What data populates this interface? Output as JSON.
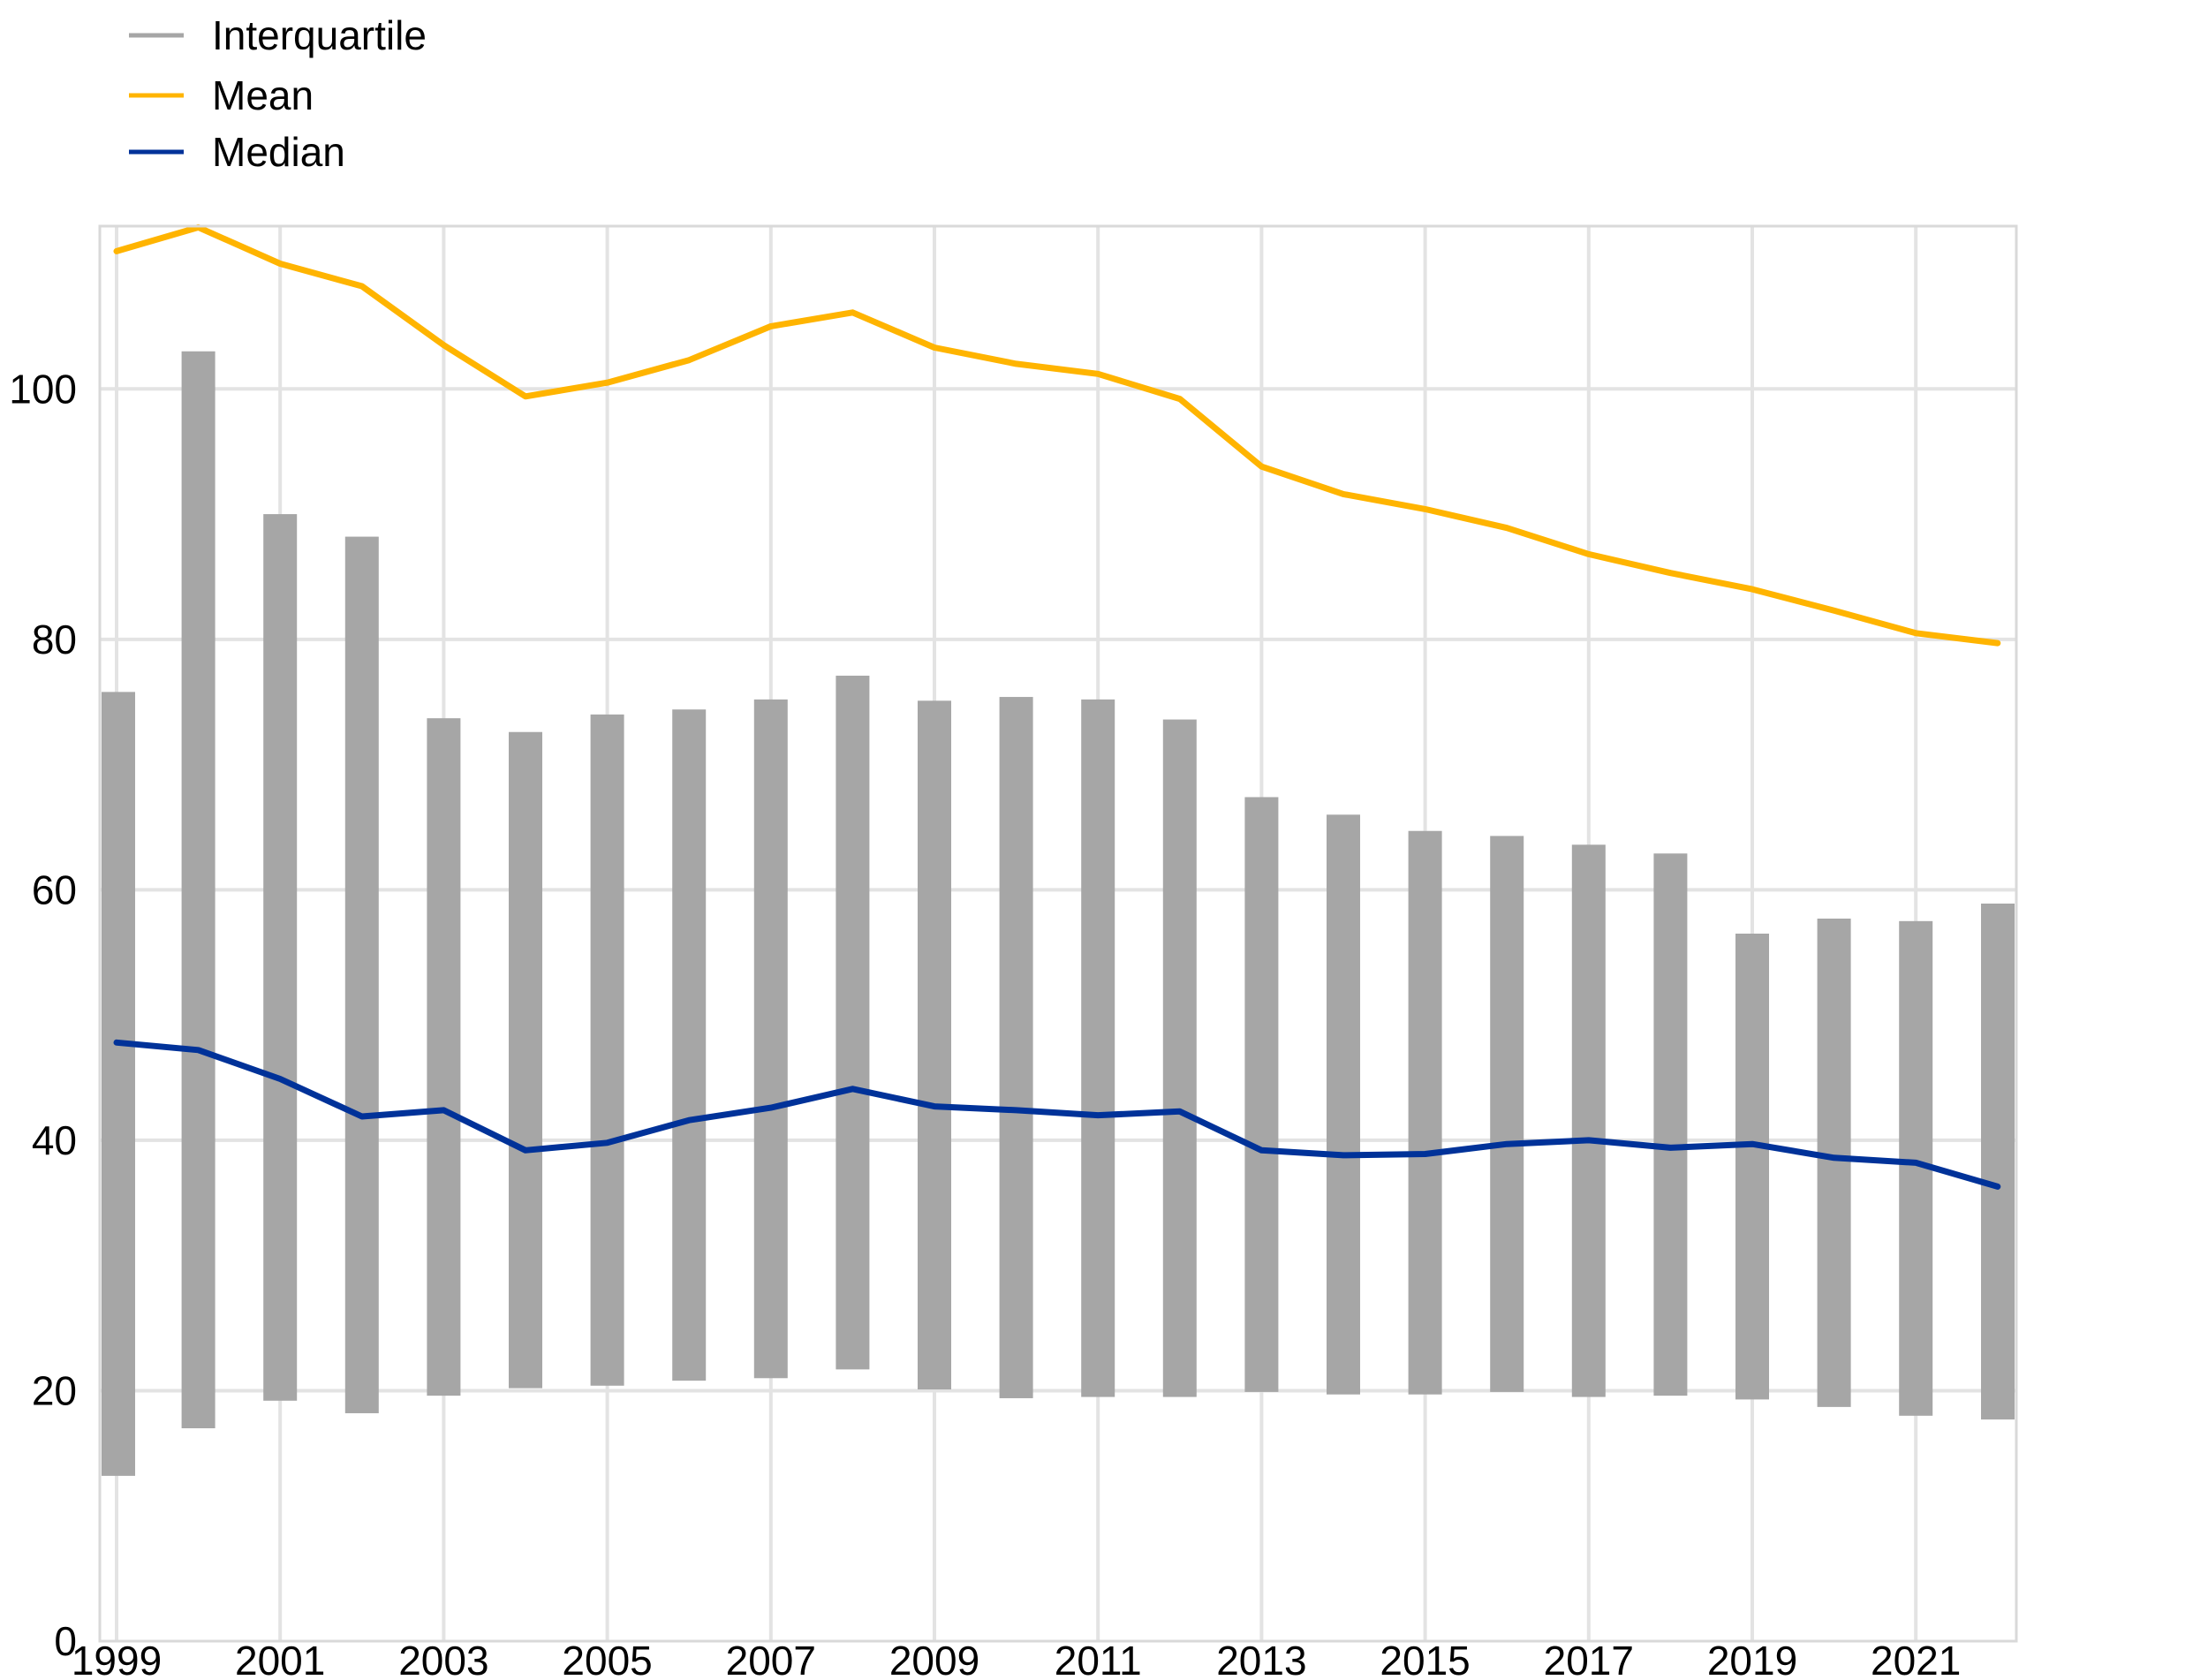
{
  "chart_data": {
    "type": "line",
    "x": [
      1999,
      2000,
      2001,
      2002,
      2003,
      2004,
      2005,
      2006,
      2007,
      2008,
      2009,
      2010,
      2011,
      2012,
      2013,
      2014,
      2015,
      2016,
      2017,
      2018,
      2019,
      2020,
      2021,
      2022
    ],
    "x_tick_labels": [
      "1999",
      "2001",
      "2003",
      "2005",
      "2007",
      "2009",
      "2011",
      "2013",
      "2015",
      "2017",
      "2019",
      "2021"
    ],
    "y_tick_labels": [
      "0",
      "20",
      "40",
      "60",
      "80",
      "100"
    ],
    "ylim": [
      0,
      113
    ],
    "grid": true,
    "legend_position": "top-left",
    "interquartile": {
      "name": "Interquartile",
      "color": "#a6a6a6",
      "low": [
        13.2,
        17.0,
        19.2,
        18.2,
        19.6,
        20.2,
        20.4,
        20.8,
        21.0,
        21.7,
        20.1,
        19.4,
        19.5,
        19.5,
        19.9,
        19.7,
        19.7,
        19.9,
        19.5,
        19.6,
        19.3,
        18.7,
        18.0,
        17.7
      ],
      "high": [
        75.8,
        103.0,
        90.0,
        88.2,
        73.7,
        72.6,
        74.0,
        74.4,
        75.2,
        77.1,
        75.1,
        75.4,
        75.2,
        73.6,
        67.4,
        66.0,
        64.7,
        64.3,
        63.6,
        62.9,
        56.5,
        57.7,
        57.5,
        58.9
      ]
    },
    "series": [
      {
        "name": "Mean",
        "color": "#ffb400",
        "values": [
          111.0,
          112.9,
          110.0,
          108.2,
          103.5,
          99.4,
          100.5,
          102.3,
          105.0,
          106.1,
          103.3,
          102.0,
          101.2,
          99.2,
          93.8,
          91.6,
          90.4,
          88.9,
          86.8,
          85.3,
          84.0,
          82.3,
          80.5,
          79.7
        ]
      },
      {
        "name": "Median",
        "color": "#003299",
        "values": [
          47.8,
          47.2,
          44.9,
          41.9,
          42.4,
          39.2,
          39.8,
          41.6,
          42.6,
          44.1,
          42.7,
          42.4,
          42.0,
          42.3,
          39.2,
          38.8,
          38.9,
          39.7,
          40.0,
          39.4,
          39.7,
          38.6,
          38.2,
          36.3
        ]
      }
    ]
  }
}
